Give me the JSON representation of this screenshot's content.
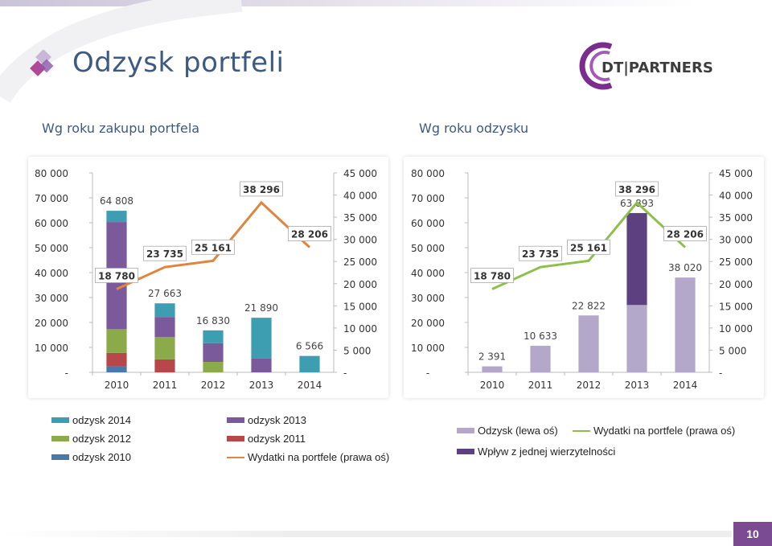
{
  "header": {
    "title": "Odzysk portfeli",
    "brand": "DT|PARTNERS",
    "page_number": "10"
  },
  "subtitles": {
    "left": "Wg roku zakupu portfela",
    "right": "Wg roku odzysku"
  },
  "colors": {
    "odzysk2014": "#3d9db1",
    "odzysk2013": "#7b5a9b",
    "odzysk2012": "#8bab4b",
    "odzysk2011": "#b8474a",
    "odzysk2010": "#4a78a8",
    "wydatki_left": "#e0843e",
    "odzysk_right": "#b3a8c9",
    "wydatki_right": "#8dc04a",
    "wplyw": "#5c4080"
  },
  "chart_data": [
    {
      "type": "bar",
      "stacked": true,
      "categories": [
        "2010",
        "2011",
        "2012",
        "2013",
        "2014"
      ],
      "y_left_ticks": [
        "-",
        "10 000",
        "20 000",
        "30 000",
        "40 000",
        "50 000",
        "60 000",
        "70 000",
        "80 000"
      ],
      "y_right_ticks": [
        "-",
        "5 000",
        "10 000",
        "15 000",
        "20 000",
        "25 000",
        "30 000",
        "35 000",
        "40 000",
        "45 000"
      ],
      "ylim_left": [
        0,
        80000
      ],
      "ylim_right": [
        0,
        45000
      ],
      "series": [
        {
          "name": "odzysk 2010",
          "color_key": "odzysk2010",
          "values": [
            2300,
            0,
            0,
            0,
            0
          ]
        },
        {
          "name": "odzysk 2011",
          "color_key": "odzysk2011",
          "values": [
            5500,
            5200,
            0,
            0,
            0
          ]
        },
        {
          "name": "odzysk 2012",
          "color_key": "odzysk2012",
          "values": [
            9500,
            9000,
            4200,
            0,
            0
          ]
        },
        {
          "name": "odzysk 2013",
          "color_key": "odzysk2013",
          "values": [
            43000,
            8000,
            7500,
            5500,
            0
          ]
        },
        {
          "name": "odzysk 2014",
          "color_key": "odzysk2014",
          "values": [
            4508,
            5463,
            5130,
            16390,
            6566
          ]
        }
      ],
      "line": {
        "name": "Wydatki na portfele (prawa oś)",
        "color_key": "wydatki_left",
        "axis": "right",
        "values": [
          18780,
          23735,
          25161,
          38296,
          28206
        ]
      },
      "bar_labels": [
        "64 808",
        "27 663",
        "16 830",
        "21 890",
        "6 566"
      ],
      "line_labels": [
        "18 780",
        "23 735",
        "25 161",
        "38 296",
        "28 206"
      ]
    },
    {
      "type": "bar",
      "categories": [
        "2010",
        "2011",
        "2012",
        "2013",
        "2014"
      ],
      "y_left_ticks": [
        "-",
        "10 000",
        "20 000",
        "30 000",
        "40 000",
        "50 000",
        "60 000",
        "70 000",
        "80 000"
      ],
      "y_right_ticks": [
        "-",
        "5 000",
        "10 000",
        "15 000",
        "20 000",
        "25 000",
        "30 000",
        "35 000",
        "40 000",
        "45 000"
      ],
      "ylim_left": [
        0,
        80000
      ],
      "ylim_right": [
        0,
        45000
      ],
      "series": [
        {
          "name": "Odzysk (lewa oś)",
          "color_key": "odzysk_right",
          "values": [
            2391,
            10633,
            22822,
            27000,
            38020
          ]
        },
        {
          "name": "Wpływ z jednej wierzytelności",
          "color_key": "wplyw",
          "values": [
            0,
            0,
            0,
            36893,
            0
          ]
        }
      ],
      "line": {
        "name": "Wydatki na portfele (prawa oś)",
        "color_key": "wydatki_right",
        "axis": "right",
        "values": [
          18780,
          23735,
          25161,
          38296,
          28206
        ]
      },
      "bar_labels": [
        "2 391",
        "10 633",
        "22 822",
        "63 893",
        "38 020"
      ],
      "line_labels": [
        "18 780",
        "23 735",
        "25 161",
        "38 296",
        "28 206"
      ]
    }
  ],
  "legend_left": [
    {
      "label": "odzysk 2014",
      "kind": "bar",
      "color_key": "odzysk2014"
    },
    {
      "label": "odzysk 2013",
      "kind": "bar",
      "color_key": "odzysk2013"
    },
    {
      "label": "odzysk 2012",
      "kind": "bar",
      "color_key": "odzysk2012"
    },
    {
      "label": "odzysk 2011",
      "kind": "bar",
      "color_key": "odzysk2011"
    },
    {
      "label": "odzysk 2010",
      "kind": "bar",
      "color_key": "odzysk2010"
    },
    {
      "label": "Wydatki na portfele (prawa oś)",
      "kind": "line",
      "color_key": "wydatki_left"
    }
  ],
  "legend_right": [
    {
      "label": "Odzysk (lewa oś)",
      "kind": "bar",
      "color_key": "odzysk_right"
    },
    {
      "label": "Wydatki na portfele (prawa oś)",
      "kind": "line",
      "color_key": "wydatki_right"
    },
    {
      "label": "Wpływ z jednej wierzytelności",
      "kind": "bar",
      "color_key": "wplyw"
    }
  ]
}
